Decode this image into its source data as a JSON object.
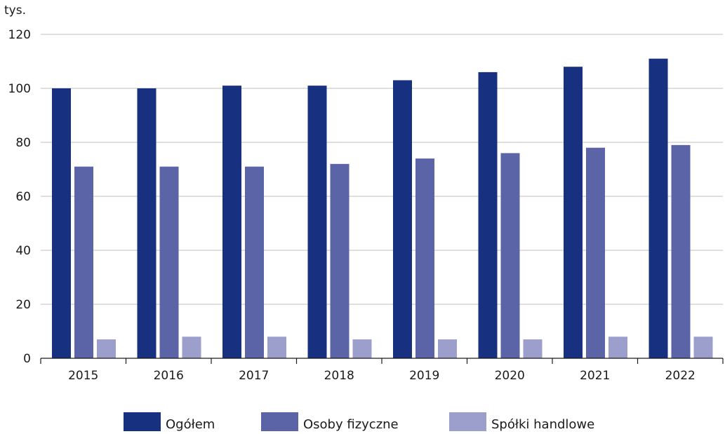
{
  "chart_data": {
    "type": "bar",
    "unit_label": "tys.",
    "categories": [
      "2015",
      "2016",
      "2017",
      "2018",
      "2019",
      "2020",
      "2021",
      "2022"
    ],
    "series": [
      {
        "name": "Ogółem",
        "color": "#17307f",
        "values": [
          100,
          100,
          101,
          101,
          103,
          106,
          108,
          111
        ]
      },
      {
        "name": "Osoby fizyczne",
        "color": "#5b64a6",
        "values": [
          71,
          71,
          71,
          72,
          74,
          76,
          78,
          79
        ]
      },
      {
        "name": "Spółki handlowe",
        "color": "#9c9fcc",
        "values": [
          7,
          8,
          8,
          7,
          7,
          7,
          8,
          8
        ]
      }
    ],
    "ylim": [
      0,
      120
    ],
    "y_ticks": [
      0,
      20,
      40,
      60,
      80,
      100,
      120
    ],
    "grid": true,
    "legend_position": "bottom"
  }
}
